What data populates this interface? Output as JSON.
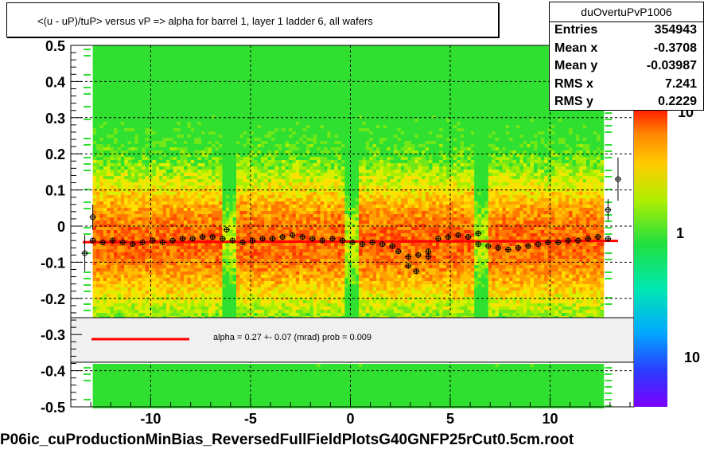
{
  "title": "<(u - uP)/tuP>  versus   vP => alpha for barrel 1, layer 1 ladder 6, all wafers",
  "stats": {
    "name": "duOvertuPvP1006",
    "rows": [
      {
        "label": "Entries",
        "value": "354943"
      },
      {
        "label": "Mean x",
        "value": "-0.3708"
      },
      {
        "label": "Mean y",
        "value": "-0.03987"
      },
      {
        "label": "RMS x",
        "value": "7.241"
      },
      {
        "label": "RMS y",
        "value": "0.2229"
      }
    ]
  },
  "fit_text": "alpha =    0.27 +-  0.07 (mrad) prob = 0.009",
  "footer": "P06ic_cuProductionMinBias_ReversedFullFieldPlotsG40GNFP25rCut0.5cm.root",
  "colors": {
    "fit_line": "#ff0000",
    "legend_fill": "#f0f0f0"
  },
  "chart_data": {
    "type": "heatmap",
    "title": "<(u - uP)/tuP>  versus   vP => alpha for barrel 1, layer 1 ladder 6, all wafers",
    "xlim": [
      -14,
      14.2
    ],
    "ylim": [
      -0.5,
      0.5
    ],
    "x_ticks": [
      -10,
      -5,
      0,
      5,
      10
    ],
    "y_ticks": [
      0.5,
      0.4,
      0.3,
      0.2,
      0.1,
      0,
      -0.1,
      -0.2,
      -0.3,
      -0.4,
      -0.5
    ],
    "grid": true,
    "colorbar_labels": [
      "10",
      "1",
      "10"
    ],
    "fit_line": {
      "x0": -13.4,
      "x1": 13.4,
      "y0": -0.0445,
      "y1": -0.041
    },
    "profile": [
      {
        "x": -13.3,
        "y": -0.075,
        "err": 0.05
      },
      {
        "x": -12.9,
        "y": 0.025,
        "err": 0.035
      },
      {
        "x": -12.9,
        "y": -0.04
      },
      {
        "x": -12.4,
        "y": -0.045
      },
      {
        "x": -11.9,
        "y": -0.04
      },
      {
        "x": -11.4,
        "y": -0.045
      },
      {
        "x": -10.9,
        "y": -0.05
      },
      {
        "x": -10.4,
        "y": -0.045
      },
      {
        "x": -9.9,
        "y": -0.04
      },
      {
        "x": -9.4,
        "y": -0.045
      },
      {
        "x": -8.9,
        "y": -0.04
      },
      {
        "x": -8.4,
        "y": -0.035
      },
      {
        "x": -7.9,
        "y": -0.035
      },
      {
        "x": -7.4,
        "y": -0.03
      },
      {
        "x": -6.9,
        "y": -0.03
      },
      {
        "x": -6.4,
        "y": -0.035
      },
      {
        "x": -6.2,
        "y": -0.01
      },
      {
        "x": -5.9,
        "y": -0.04
      },
      {
        "x": -5.4,
        "y": -0.045
      },
      {
        "x": -4.9,
        "y": -0.04
      },
      {
        "x": -4.4,
        "y": -0.035
      },
      {
        "x": -3.9,
        "y": -0.035
      },
      {
        "x": -3.4,
        "y": -0.03
      },
      {
        "x": -2.9,
        "y": -0.025
      },
      {
        "x": -2.4,
        "y": -0.03
      },
      {
        "x": -1.9,
        "y": -0.035
      },
      {
        "x": -1.4,
        "y": -0.04
      },
      {
        "x": -0.9,
        "y": -0.035
      },
      {
        "x": -0.4,
        "y": -0.04
      },
      {
        "x": 0.1,
        "y": -0.045
      },
      {
        "x": 0.6,
        "y": -0.05
      },
      {
        "x": 1.1,
        "y": -0.045
      },
      {
        "x": 1.6,
        "y": -0.05
      },
      {
        "x": 2.1,
        "y": -0.055
      },
      {
        "x": 2.4,
        "y": -0.07
      },
      {
        "x": 2.9,
        "y": -0.085
      },
      {
        "x": 2.9,
        "y": -0.11
      },
      {
        "x": 3.3,
        "y": -0.125
      },
      {
        "x": 3.4,
        "y": -0.08
      },
      {
        "x": 3.9,
        "y": -0.07
      },
      {
        "x": 3.9,
        "y": -0.085
      },
      {
        "x": 4.4,
        "y": -0.035
      },
      {
        "x": 4.9,
        "y": -0.03
      },
      {
        "x": 5.4,
        "y": -0.025
      },
      {
        "x": 5.9,
        "y": -0.03
      },
      {
        "x": 6.4,
        "y": -0.02
      },
      {
        "x": 6.4,
        "y": -0.05
      },
      {
        "x": 6.9,
        "y": -0.055
      },
      {
        "x": 7.4,
        "y": -0.06
      },
      {
        "x": 7.9,
        "y": -0.065
      },
      {
        "x": 8.4,
        "y": -0.06
      },
      {
        "x": 8.9,
        "y": -0.055
      },
      {
        "x": 9.4,
        "y": -0.05
      },
      {
        "x": 9.9,
        "y": -0.045
      },
      {
        "x": 10.4,
        "y": -0.045
      },
      {
        "x": 10.9,
        "y": -0.04
      },
      {
        "x": 11.4,
        "y": -0.04
      },
      {
        "x": 11.9,
        "y": -0.035
      },
      {
        "x": 12.4,
        "y": -0.03
      },
      {
        "x": 12.9,
        "y": -0.035
      },
      {
        "x": 12.9,
        "y": 0.045,
        "err": 0.03
      },
      {
        "x": 13.4,
        "y": 0.13,
        "err": 0.06
      }
    ]
  }
}
